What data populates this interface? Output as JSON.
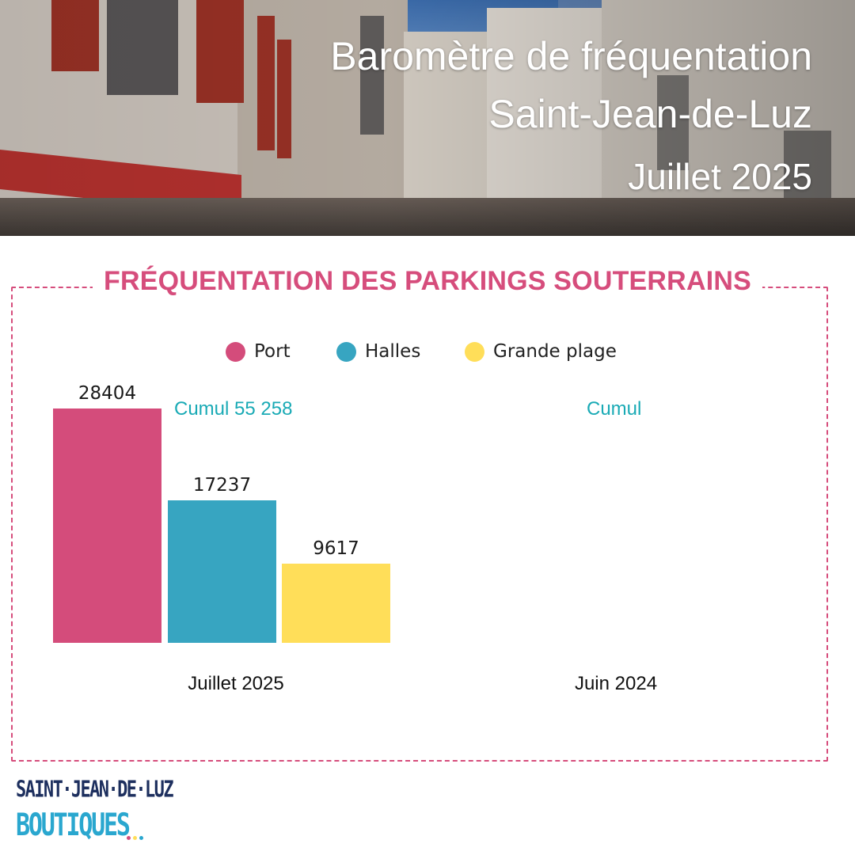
{
  "header": {
    "title_line1": "Baromètre de fréquentation",
    "title_line2": "Saint-Jean-de-Luz",
    "title_line3": "Juillet 2025"
  },
  "section": {
    "title": "FRÉQUENTATION DES PARKINGS SOUTERRAINS"
  },
  "colors": {
    "accent_pink": "#d64d7c",
    "cumul_teal": "#19aab5",
    "port": "#d44c7b",
    "halles": "#37a5c1",
    "grande_plage": "#ffde59"
  },
  "chart_data": {
    "type": "bar",
    "legend_position": "top",
    "categories": [
      "Juillet 2025",
      "Juin 2024"
    ],
    "series": [
      {
        "name": "Port",
        "color": "#d44c7b",
        "values": [
          28404,
          null
        ]
      },
      {
        "name": "Halles",
        "color": "#37a5c1",
        "values": [
          17237,
          null
        ]
      },
      {
        "name": "Grande plage",
        "color": "#ffde59",
        "values": [
          9617,
          null
        ]
      }
    ],
    "cumul_labels": [
      "Cumul 55 258",
      "Cumul"
    ],
    "ylim": [
      0,
      28404
    ],
    "grid": false
  },
  "logo": {
    "line1": "SAINT·JEAN·DE·LUZ",
    "line2": "BOUTIQUES"
  }
}
